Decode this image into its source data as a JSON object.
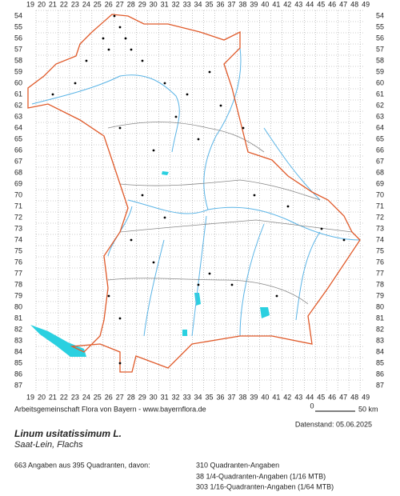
{
  "grid": {
    "columns": [
      "19",
      "20",
      "21",
      "22",
      "23",
      "24",
      "25",
      "26",
      "27",
      "28",
      "29",
      "30",
      "31",
      "32",
      "33",
      "34",
      "35",
      "36",
      "37",
      "38",
      "39",
      "40",
      "41",
      "42",
      "43",
      "44",
      "45",
      "46",
      "47",
      "48",
      "49"
    ],
    "rows": [
      "54",
      "55",
      "56",
      "57",
      "58",
      "59",
      "60",
      "61",
      "62",
      "63",
      "64",
      "65",
      "66",
      "67",
      "68",
      "69",
      "70",
      "71",
      "72",
      "73",
      "74",
      "75",
      "76",
      "77",
      "78",
      "79",
      "80",
      "81",
      "82",
      "83",
      "84",
      "85",
      "86",
      "87"
    ]
  },
  "credit": "Arbeitsgemeinschaft Flora von Bayern - www.bayernflora.de",
  "scale": {
    "start": "0",
    "end": "50 km"
  },
  "date": "Datenstand: 05.06.2025",
  "species": {
    "name": "Linum usitatissimum L.",
    "common": "Saat-Lein, Flachs"
  },
  "summary": "663 Angaben aus 395 Quadranten, davon:",
  "breakdown": [
    "310 Quadranten-Angaben",
    "38 1/4-Quadranten-Angaben (1/16 MTB)",
    "303 1/16-Quadranten-Angaben (1/64 MTB)"
  ]
}
